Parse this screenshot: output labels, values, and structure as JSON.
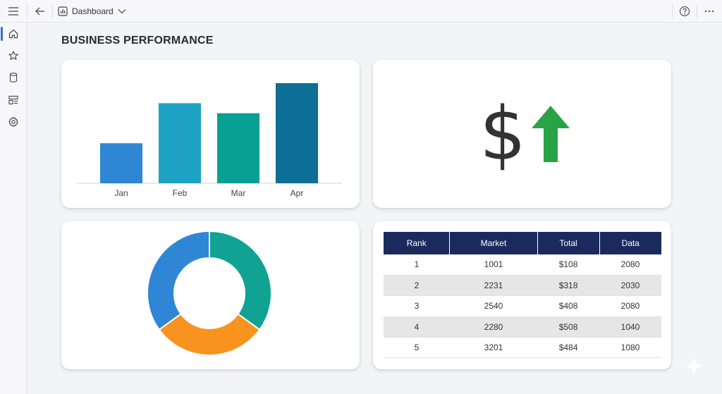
{
  "header": {
    "dashboard_label": "Dashboard"
  },
  "icons": {
    "menu": "hamburger-menu-icon",
    "back": "arrow-left-icon",
    "chart": "bar-chart-icon",
    "dropdown": "chevron-down-icon",
    "help": "help-circle-icon",
    "more": "more-horizontal-icon"
  },
  "sidebar": {
    "items": [
      {
        "icon": "home-icon",
        "active": true
      },
      {
        "icon": "star-icon",
        "active": false
      },
      {
        "icon": "database-icon",
        "active": false
      },
      {
        "icon": "layout-icon",
        "active": false
      },
      {
        "icon": "gear-icon",
        "active": false
      }
    ]
  },
  "page": {
    "title": "BUSINESS PERFORMANCE"
  },
  "kpi": {
    "symbol": "$",
    "trend": "up",
    "symbol_color": "#333333",
    "arrow_color": "#2aa346"
  },
  "chart_data": [
    {
      "type": "bar",
      "categories": [
        "Jan",
        "Feb",
        "Mar",
        "Apr"
      ],
      "values": [
        40,
        80,
        70,
        100
      ],
      "colors": [
        "#2f86d4",
        "#1ea3c4",
        "#08a093",
        "#0d6f95"
      ],
      "ylim": [
        0,
        100
      ],
      "grid": false
    },
    {
      "type": "pie",
      "donut": true,
      "values": [
        35,
        30,
        35
      ],
      "colors": [
        "#10a393",
        "#f7931e",
        "#2f86d4"
      ]
    }
  ],
  "table": {
    "headers": [
      "Rank",
      "Market",
      "Total",
      "Data"
    ],
    "rows": [
      [
        "1",
        "1001",
        "$108",
        "2080"
      ],
      [
        "2",
        "2231",
        "$318",
        "2030"
      ],
      [
        "3",
        "2540",
        "$408",
        "2080"
      ],
      [
        "4",
        "2280",
        "$508",
        "1040"
      ],
      [
        "5",
        "3201",
        "$484",
        "1080"
      ]
    ],
    "header_color": "#1b2a5c",
    "alt_row_color": "#e6e6e6"
  }
}
